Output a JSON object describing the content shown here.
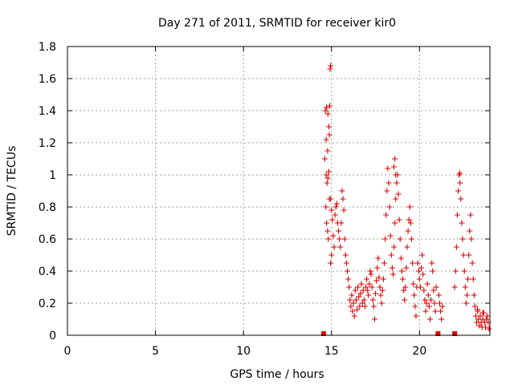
{
  "chart_data": {
    "type": "scatter",
    "title": "Day 271 of 2011, SRMTID for receiver kir0",
    "xlabel": "GPS time / hours",
    "ylabel": "SRMTID / TECUs",
    "xlim": [
      0,
      24
    ],
    "ylim": [
      0,
      1.8
    ],
    "grid": true,
    "marker": "+",
    "marker_color": "#e00000",
    "x_ticks": [
      0,
      5,
      10,
      15,
      20
    ],
    "x_tick_labels": [
      "0",
      "5",
      "10",
      "15",
      "20"
    ],
    "y_ticks": [
      0,
      0.2,
      0.4,
      0.6,
      0.8,
      1,
      1.2,
      1.4,
      1.6,
      1.8
    ],
    "y_tick_labels": [
      "0",
      "0.2",
      "0.4",
      "0.6",
      "0.8",
      "1",
      "1.2",
      "1.4",
      "1.6",
      "1.8"
    ],
    "series": [
      {
        "points": [
          [
            14.55,
            0.01
          ],
          [
            21.05,
            0.01
          ],
          [
            22.0,
            0.01
          ],
          [
            14.65,
            1.4
          ],
          [
            14.72,
            1.42
          ],
          [
            14.8,
            1.38
          ],
          [
            14.85,
            1.3
          ],
          [
            14.7,
            1.22
          ],
          [
            14.78,
            1.15
          ],
          [
            14.62,
            1.1
          ],
          [
            14.9,
            1.43
          ],
          [
            14.92,
            1.66
          ],
          [
            14.95,
            1.68
          ],
          [
            14.88,
            1.25
          ],
          [
            14.7,
            1.0
          ],
          [
            14.75,
            0.95
          ],
          [
            14.8,
            0.98
          ],
          [
            14.85,
            1.02
          ],
          [
            14.68,
            0.8
          ],
          [
            14.72,
            0.7
          ],
          [
            14.78,
            0.65
          ],
          [
            14.82,
            0.6
          ],
          [
            14.88,
            0.85
          ],
          [
            14.95,
            0.85
          ],
          [
            15.0,
            0.78
          ],
          [
            15.05,
            0.72
          ],
          [
            15.1,
            0.62
          ],
          [
            15.15,
            0.55
          ],
          [
            14.95,
            0.45
          ],
          [
            15.0,
            0.5
          ],
          [
            15.2,
            0.75
          ],
          [
            15.25,
            0.8
          ],
          [
            15.3,
            0.82
          ],
          [
            15.35,
            0.7
          ],
          [
            15.4,
            0.65
          ],
          [
            15.45,
            0.6
          ],
          [
            15.5,
            0.55
          ],
          [
            15.55,
            0.7
          ],
          [
            15.6,
            0.9
          ],
          [
            15.65,
            0.85
          ],
          [
            15.7,
            0.78
          ],
          [
            15.75,
            0.6
          ],
          [
            15.8,
            0.5
          ],
          [
            15.85,
            0.45
          ],
          [
            15.9,
            0.4
          ],
          [
            15.95,
            0.35
          ],
          [
            16.0,
            0.3
          ],
          [
            16.05,
            0.22
          ],
          [
            16.1,
            0.18
          ],
          [
            16.15,
            0.25
          ],
          [
            16.2,
            0.15
          ],
          [
            16.25,
            0.2
          ],
          [
            16.3,
            0.12
          ],
          [
            16.35,
            0.28
          ],
          [
            16.4,
            0.22
          ],
          [
            16.45,
            0.16
          ],
          [
            16.5,
            0.3
          ],
          [
            16.55,
            0.24
          ],
          [
            16.6,
            0.18
          ],
          [
            16.65,
            0.26
          ],
          [
            16.7,
            0.32
          ],
          [
            16.75,
            0.2
          ],
          [
            16.8,
            0.28
          ],
          [
            16.85,
            0.22
          ],
          [
            16.9,
            0.18
          ],
          [
            16.95,
            0.3
          ],
          [
            17.0,
            0.35
          ],
          [
            17.05,
            0.28
          ],
          [
            17.1,
            0.25
          ],
          [
            17.15,
            0.32
          ],
          [
            17.2,
            0.4
          ],
          [
            17.25,
            0.38
          ],
          [
            17.3,
            0.3
          ],
          [
            17.35,
            0.22
          ],
          [
            17.4,
            0.18
          ],
          [
            17.45,
            0.1
          ],
          [
            17.5,
            0.26
          ],
          [
            17.55,
            0.34
          ],
          [
            17.6,
            0.42
          ],
          [
            17.65,
            0.48
          ],
          [
            17.7,
            0.36
          ],
          [
            17.75,
            0.3
          ],
          [
            17.8,
            0.25
          ],
          [
            17.85,
            0.2
          ],
          [
            17.9,
            0.28
          ],
          [
            17.95,
            0.35
          ],
          [
            18.0,
            0.45
          ],
          [
            18.05,
            0.6
          ],
          [
            18.1,
            0.75
          ],
          [
            18.15,
            0.9
          ],
          [
            18.2,
            1.04
          ],
          [
            18.25,
            0.95
          ],
          [
            18.3,
            0.8
          ],
          [
            18.35,
            0.62
          ],
          [
            18.4,
            0.5
          ],
          [
            18.45,
            0.42
          ],
          [
            18.5,
            0.38
          ],
          [
            18.55,
            0.55
          ],
          [
            18.6,
            0.7
          ],
          [
            18.65,
            0.85
          ],
          [
            18.7,
            0.95
          ],
          [
            18.75,
            1.0
          ],
          [
            18.8,
            0.88
          ],
          [
            18.85,
            0.72
          ],
          [
            18.9,
            0.6
          ],
          [
            18.95,
            0.48
          ],
          [
            18.6,
            1.1
          ],
          [
            18.55,
            1.05
          ],
          [
            18.65,
            1.0
          ],
          [
            19.0,
            0.4
          ],
          [
            19.05,
            0.35
          ],
          [
            19.1,
            0.28
          ],
          [
            19.15,
            0.22
          ],
          [
            19.2,
            0.3
          ],
          [
            19.25,
            0.42
          ],
          [
            19.3,
            0.55
          ],
          [
            19.35,
            0.65
          ],
          [
            19.4,
            0.72
          ],
          [
            19.45,
            0.8
          ],
          [
            19.5,
            0.7
          ],
          [
            19.55,
            0.6
          ],
          [
            19.6,
            0.45
          ],
          [
            19.65,
            0.32
          ],
          [
            19.7,
            0.25
          ],
          [
            19.75,
            0.18
          ],
          [
            19.8,
            0.12
          ],
          [
            19.85,
            0.3
          ],
          [
            19.9,
            0.45
          ],
          [
            19.95,
            0.4
          ],
          [
            20.0,
            0.35
          ],
          [
            20.05,
            0.3
          ],
          [
            20.1,
            0.42
          ],
          [
            20.15,
            0.5
          ],
          [
            20.2,
            0.38
          ],
          [
            20.25,
            0.28
          ],
          [
            20.3,
            0.22
          ],
          [
            20.35,
            0.15
          ],
          [
            20.4,
            0.2
          ],
          [
            20.45,
            0.32
          ],
          [
            20.5,
            0.25
          ],
          [
            20.55,
            0.18
          ],
          [
            20.6,
            0.1
          ],
          [
            20.65,
            0.22
          ],
          [
            20.7,
            0.45
          ],
          [
            20.75,
            0.4
          ],
          [
            20.8,
            0.28
          ],
          [
            20.85,
            0.2
          ],
          [
            20.9,
            0.15
          ],
          [
            20.95,
            0.3
          ],
          [
            21.1,
            0.25
          ],
          [
            21.15,
            0.2
          ],
          [
            21.2,
            0.15
          ],
          [
            21.25,
            0.1
          ],
          [
            21.3,
            0.18
          ],
          [
            22.0,
            0.3
          ],
          [
            22.05,
            0.4
          ],
          [
            22.1,
            0.55
          ],
          [
            22.15,
            0.75
          ],
          [
            22.2,
            0.9
          ],
          [
            22.25,
            1.0
          ],
          [
            22.3,
            0.95
          ],
          [
            22.35,
            0.85
          ],
          [
            22.4,
            0.7
          ],
          [
            22.45,
            0.6
          ],
          [
            22.5,
            0.5
          ],
          [
            22.55,
            0.4
          ],
          [
            22.6,
            0.3
          ],
          [
            22.65,
            0.2
          ],
          [
            22.7,
            0.25
          ],
          [
            22.75,
            0.35
          ],
          [
            22.8,
            0.5
          ],
          [
            22.85,
            0.65
          ],
          [
            22.9,
            0.75
          ],
          [
            22.95,
            0.6
          ],
          [
            22.3,
            1.01
          ],
          [
            23.0,
            0.45
          ],
          [
            23.05,
            0.35
          ],
          [
            23.1,
            0.25
          ],
          [
            23.15,
            0.18
          ],
          [
            23.2,
            0.12
          ],
          [
            23.25,
            0.08
          ],
          [
            23.3,
            0.15
          ],
          [
            23.35,
            0.1
          ],
          [
            23.4,
            0.06
          ],
          [
            23.45,
            0.12
          ],
          [
            23.5,
            0.08
          ],
          [
            23.55,
            0.05
          ],
          [
            23.6,
            0.1
          ],
          [
            23.65,
            0.14
          ],
          [
            23.7,
            0.08
          ],
          [
            23.75,
            0.05
          ],
          [
            23.8,
            0.1
          ],
          [
            23.85,
            0.12
          ],
          [
            23.9,
            0.08
          ],
          [
            23.95,
            0.04
          ],
          [
            23.3,
            0.16
          ],
          [
            23.6,
            0.14
          ]
        ]
      }
    ]
  }
}
